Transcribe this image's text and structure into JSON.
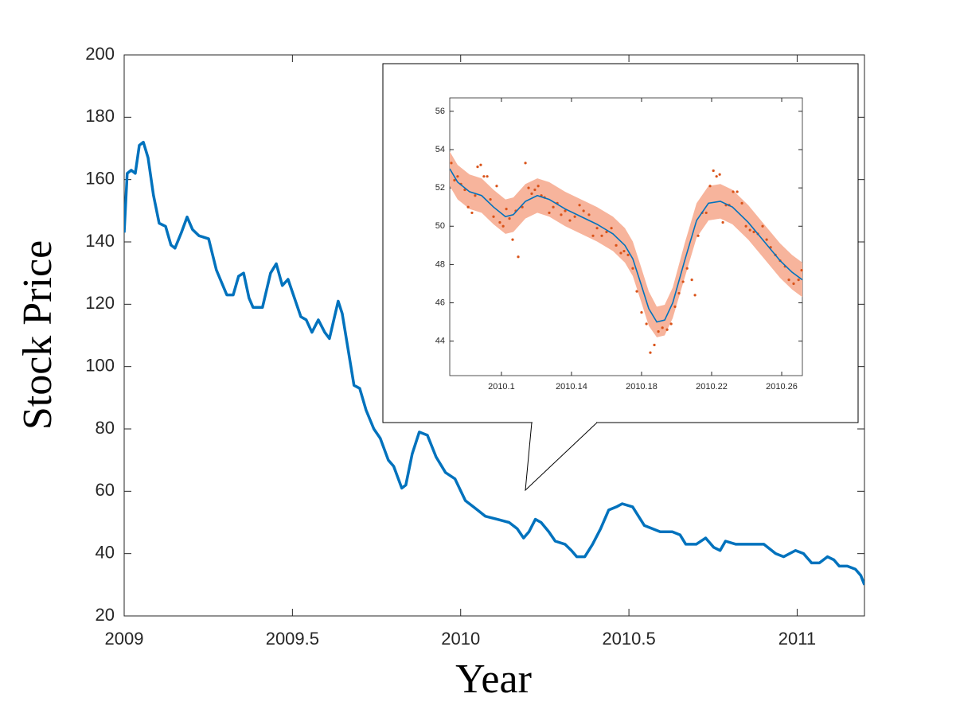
{
  "chart_data": [
    {
      "type": "line",
      "xlabel": "Year",
      "ylabel": "Stock Price",
      "xlim": [
        2009,
        2011.2
      ],
      "xticks": [
        2009,
        2009.5,
        2010,
        2010.5,
        2011
      ],
      "ylim": [
        20,
        200
      ],
      "yticks": [
        20,
        40,
        60,
        80,
        100,
        120,
        140,
        160,
        180,
        200
      ],
      "x": [
        2009,
        2009.009,
        2009.021,
        2009.033,
        2009.045,
        2009.057,
        2009.071,
        2009.087,
        2009.104,
        2009.123,
        2009.139,
        2009.151,
        2009.17,
        2009.187,
        2009.203,
        2009.222,
        2009.251,
        2009.274,
        2009.305,
        2009.324,
        2009.34,
        2009.355,
        2009.371,
        2009.383,
        2009.411,
        2009.435,
        2009.452,
        2009.47,
        2009.487,
        2009.525,
        2009.541,
        2009.558,
        2009.577,
        2009.596,
        2009.61,
        2009.636,
        2009.648,
        2009.683,
        2009.7,
        2009.719,
        2009.742,
        2009.761,
        2009.785,
        2009.801,
        2009.825,
        2009.837,
        2009.856,
        2009.877,
        2009.901,
        2009.927,
        2009.955,
        2009.983,
        2010.014,
        2010.05,
        2010.073,
        2010.109,
        2010.144,
        2010.168,
        2010.187,
        2010.203,
        2010.222,
        2010.239,
        2010.262,
        2010.281,
        2010.31,
        2010.329,
        2010.345,
        2010.369,
        2010.392,
        2010.416,
        2010.44,
        2010.463,
        2010.48,
        2010.511,
        2010.546,
        2010.593,
        2010.629,
        2010.652,
        2010.669,
        2010.7,
        2010.728,
        2010.752,
        2010.771,
        2010.787,
        2010.818,
        2010.853,
        2010.901,
        2010.936,
        2010.96,
        2010.995,
        2011.019,
        2011.043,
        2011.066,
        2011.09,
        2011.109,
        2011.125,
        2011.149,
        2011.173,
        2011.189,
        2011.2
      ],
      "series": [
        {
          "color": "#0072bd",
          "values": [
            143,
            162,
            163,
            162,
            171,
            172,
            167,
            155,
            146,
            145,
            139,
            138,
            143,
            148,
            144,
            142,
            141,
            131,
            123,
            123,
            129,
            130,
            122,
            119,
            119,
            130,
            133,
            126,
            128,
            116,
            115,
            111,
            115,
            111,
            109,
            121,
            117,
            94,
            93,
            86,
            80,
            77,
            70,
            68,
            61,
            62,
            72,
            79,
            78,
            71,
            66,
            64,
            57,
            54,
            52,
            51,
            50,
            48,
            45,
            47,
            51,
            50,
            47,
            44,
            43,
            41,
            39,
            39,
            43,
            48,
            54,
            55,
            56,
            55,
            49,
            47,
            47,
            46,
            43,
            43,
            45,
            42,
            41,
            44,
            43,
            43,
            43,
            40,
            39,
            41,
            40,
            37,
            37,
            39,
            38,
            36,
            36,
            35,
            33,
            30
          ]
        }
      ]
    },
    {
      "type": "scatter",
      "xlim": [
        2010.0705,
        2010.2718
      ],
      "xticks": [
        2010.1,
        2010.14,
        2010.18,
        2010.22,
        2010.26
      ],
      "ylim": [
        42.2,
        56.7
      ],
      "yticks": [
        44,
        46,
        48,
        50,
        52,
        54,
        56
      ],
      "x": [
        2010.0705,
        2010.075,
        2010.0818,
        2010.0887,
        2010.0955,
        2010.1023,
        2010.1068,
        2010.1137,
        2010.1205,
        2010.1273,
        2010.1364,
        2010.1455,
        2010.1546,
        2010.1637,
        2010.1705,
        2010.175,
        2010.1796,
        2010.1841,
        2010.1887,
        2010.1932,
        2010.1978,
        2010.2046,
        2010.2114,
        2010.2182,
        2010.225,
        2010.2319,
        2010.2409,
        2010.25,
        2010.2591,
        2010.2659,
        2010.2718
      ],
      "series": [
        {
          "color": "#0072bd",
          "values": [
            53.0,
            52.3,
            51.8,
            51.6,
            51.0,
            50.5,
            50.6,
            51.3,
            51.6,
            51.4,
            50.9,
            50.5,
            50.1,
            49.6,
            49.0,
            48.3,
            47.0,
            45.7,
            45.0,
            45.1,
            46.0,
            48.2,
            50.3,
            51.2,
            51.3,
            51.0,
            50.2,
            49.2,
            48.2,
            47.6,
            47.2
          ]
        }
      ],
      "band": {
        "color": "#f7b49c",
        "upper": [
          53.9,
          53.2,
          52.7,
          52.5,
          51.9,
          51.4,
          51.5,
          52.2,
          52.5,
          52.3,
          51.8,
          51.4,
          51.0,
          50.5,
          49.9,
          49.2,
          47.9,
          46.6,
          45.8,
          45.9,
          46.8,
          49.1,
          51.2,
          52.1,
          52.2,
          51.9,
          51.1,
          50.1,
          49.1,
          48.5,
          48.1
        ],
        "lower": [
          52.1,
          51.4,
          50.9,
          50.7,
          50.1,
          49.6,
          49.7,
          50.4,
          50.7,
          50.5,
          50.0,
          49.6,
          49.2,
          48.7,
          48.1,
          47.4,
          46.1,
          44.8,
          44.2,
          44.3,
          45.2,
          47.3,
          49.4,
          50.3,
          50.4,
          50.1,
          49.3,
          48.3,
          47.3,
          46.7,
          46.3
        ]
      },
      "scatter": {
        "color": "#d95319",
        "x": [
          2010.0714,
          2010.0732,
          2010.075,
          2010.0769,
          2010.0791,
          2010.081,
          2010.0832,
          2010.085,
          2010.0864,
          2010.0882,
          2010.09,
          2010.0919,
          2010.0937,
          2010.0955,
          2010.0973,
          2010.0991,
          2010.101,
          2010.1028,
          2010.1046,
          2010.1064,
          2010.1082,
          2010.1096,
          2010.1119,
          2010.1137,
          2010.1155,
          2010.1173,
          2010.1191,
          2010.121,
          2010.1228,
          2010.1246,
          2010.1273,
          2010.1296,
          2010.1319,
          2010.1341,
          2010.1364,
          2010.1391,
          2010.1419,
          2010.1446,
          2010.1469,
          2010.15,
          2010.1523,
          2010.1546,
          2010.1573,
          2010.16,
          2010.1628,
          2010.1655,
          2010.1682,
          2010.17,
          2010.1723,
          2010.175,
          2010.1773,
          2010.18,
          2010.1828,
          2010.185,
          2010.1873,
          2010.1896,
          2010.1919,
          2010.1946,
          2010.1969,
          2010.1991,
          2010.2014,
          2010.2037,
          2010.206,
          2010.2087,
          2010.2105,
          2010.2123,
          2010.2146,
          2010.2169,
          2010.2191,
          2010.221,
          2010.2228,
          2010.2246,
          2010.2264,
          2010.2282,
          2010.23,
          2010.2323,
          2010.2346,
          2010.2373,
          2010.2396,
          2010.2419,
          2010.2441,
          2010.2464,
          2010.2491,
          2010.2514,
          2010.2537,
          2010.2564,
          2010.2591,
          2010.2619,
          2010.2641,
          2010.2668,
          2010.2696,
          2010.2714
        ],
        "values": [
          53.3,
          52.4,
          52.6,
          52.2,
          51.9,
          51.0,
          50.7,
          51.6,
          53.1,
          53.2,
          52.6,
          52.6,
          51.4,
          50.5,
          52.1,
          50.2,
          50.0,
          50.9,
          50.4,
          49.3,
          50.8,
          48.4,
          51.0,
          53.3,
          52.0,
          51.7,
          51.9,
          52.1,
          51.6,
          51.5,
          50.7,
          51.0,
          51.2,
          50.6,
          50.8,
          50.3,
          50.5,
          51.1,
          50.8,
          50.6,
          49.5,
          49.9,
          49.5,
          49.7,
          49.9,
          49.0,
          48.6,
          48.7,
          48.5,
          47.8,
          46.6,
          45.5,
          44.9,
          43.4,
          43.8,
          44.5,
          44.7,
          44.6,
          44.9,
          45.8,
          46.5,
          47.1,
          47.8,
          47.2,
          46.4,
          49.5,
          50.7,
          50.7,
          52.1,
          52.9,
          52.6,
          52.7,
          50.2,
          51.1,
          51.1,
          51.8,
          51.8,
          51.2,
          50.0,
          49.8,
          49.7,
          49.6,
          50.0,
          49.3,
          48.9,
          48.5,
          48.2,
          47.9,
          47.2,
          47.0,
          47.2,
          47.7
        ]
      }
    }
  ]
}
